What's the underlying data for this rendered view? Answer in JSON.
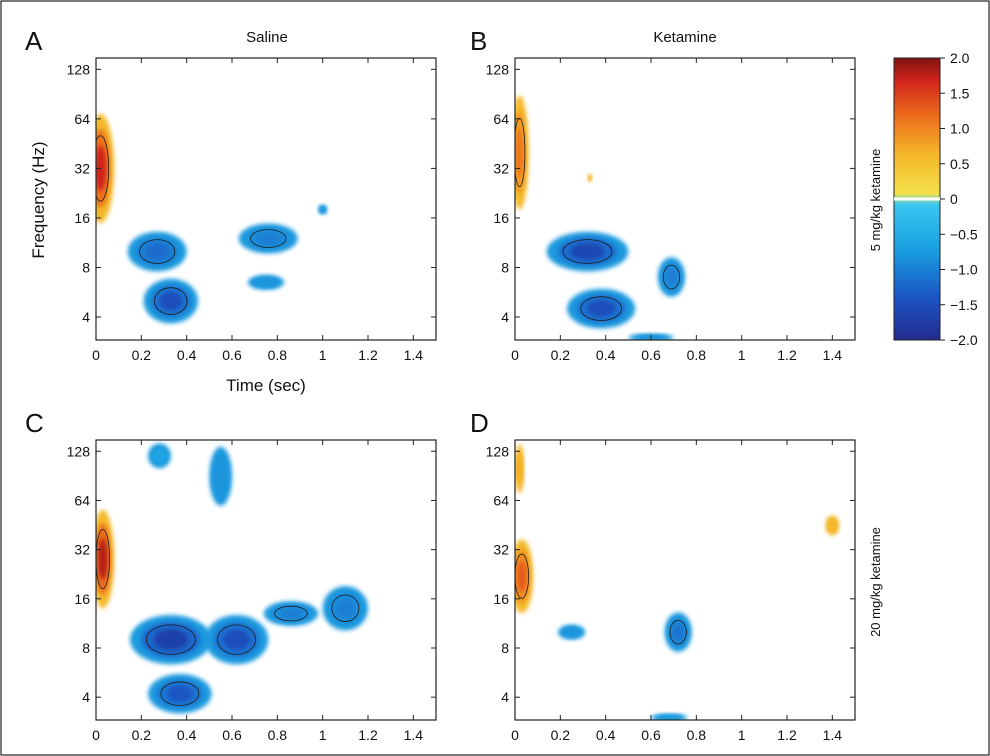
{
  "figure": {
    "colors": {
      "deep_blue": "#2a2f9a",
      "blue": "#1e6fd0",
      "light_blue": "#1fa7e6",
      "yellow": "#f2c12e",
      "orange": "#ee7a1e",
      "red": "#d8221e",
      "dark_red": "#8c1712",
      "border": "#222222"
    }
  },
  "row_labels": [
    "5 mg/kg ketamine",
    "20 mg/kg ketamine"
  ],
  "colorbar": {
    "ticks": [
      "2.0",
      "1.5",
      "1.0",
      "0.5",
      "0",
      "−0.5",
      "−1.0",
      "−1.5",
      "−2.0"
    ],
    "range": [
      -2.0,
      2.0
    ]
  },
  "axes": {
    "x_ticks": [
      "0",
      "0.2",
      "0.4",
      "0.6",
      "0.8",
      "1",
      "1.2",
      "1.4"
    ],
    "y_ticks": [
      "128",
      "64",
      "32",
      "16",
      "8",
      "4"
    ],
    "xlabel": "Time (sec)",
    "ylabel": "Frequency (Hz)"
  },
  "chart_data": [
    {
      "type": "heatmap",
      "panel": "A",
      "title": "Saline",
      "xlabel": "Time (sec)",
      "ylabel": "Frequency (Hz)",
      "xlim": [
        0,
        1.5
      ],
      "y_scale": "log2",
      "ylim": [
        2.9,
        150
      ],
      "color_range": [
        -2.0,
        2.0
      ],
      "blobs": [
        {
          "t": 0.02,
          "f": 32,
          "value": 1.7,
          "t_half": 0.06,
          "f_span": 2.2
        },
        {
          "t": 0.33,
          "f": 5,
          "value": -1.5,
          "t_half": 0.12,
          "f_span": 0.9
        },
        {
          "t": 0.27,
          "f": 10,
          "value": -1.2,
          "t_half": 0.13,
          "f_span": 0.8
        },
        {
          "t": 0.76,
          "f": 12,
          "value": -1.0,
          "t_half": 0.13,
          "f_span": 0.6
        },
        {
          "t": 0.75,
          "f": 6.5,
          "value": -0.8,
          "t_half": 0.08,
          "f_span": 0.3
        },
        {
          "t": 1.0,
          "f": 18,
          "value": -0.7,
          "t_half": 0.02,
          "f_span": 0.2
        }
      ]
    },
    {
      "type": "heatmap",
      "panel": "B",
      "title": "Ketamine",
      "xlabel": "",
      "ylabel": "",
      "xlim": [
        0,
        1.5
      ],
      "y_scale": "log2",
      "ylim": [
        2.9,
        150
      ],
      "color_range": [
        -2.0,
        2.0
      ],
      "blobs": [
        {
          "t": 0.02,
          "f": 40,
          "value": 1.1,
          "t_half": 0.04,
          "f_span": 2.3
        },
        {
          "t": 0.32,
          "f": 10,
          "value": -1.6,
          "t_half": 0.18,
          "f_span": 0.8
        },
        {
          "t": 0.38,
          "f": 4.5,
          "value": -1.5,
          "t_half": 0.15,
          "f_span": 0.8
        },
        {
          "t": 0.69,
          "f": 7,
          "value": -1.0,
          "t_half": 0.06,
          "f_span": 0.8
        },
        {
          "t": 0.6,
          "f": 3.0,
          "value": -0.8,
          "t_half": 0.1,
          "f_span": 0.15
        },
        {
          "t": 0.33,
          "f": 28,
          "value": 0.6,
          "t_half": 0.01,
          "f_span": 0.15
        }
      ]
    },
    {
      "type": "heatmap",
      "panel": "C",
      "title": "",
      "xlabel": "",
      "ylabel": "",
      "xlim": [
        0,
        1.5
      ],
      "y_scale": "log2",
      "ylim": [
        2.9,
        150
      ],
      "color_range": [
        -2.0,
        2.0
      ],
      "blobs": [
        {
          "t": 0.03,
          "f": 28,
          "value": 1.8,
          "t_half": 0.05,
          "f_span": 2.0
        },
        {
          "t": 0.33,
          "f": 9,
          "value": -1.7,
          "t_half": 0.18,
          "f_span": 1.0
        },
        {
          "t": 0.37,
          "f": 4.2,
          "value": -1.4,
          "t_half": 0.14,
          "f_span": 0.8
        },
        {
          "t": 0.62,
          "f": 9,
          "value": -1.5,
          "t_half": 0.14,
          "f_span": 1.0
        },
        {
          "t": 0.86,
          "f": 13,
          "value": -1.0,
          "t_half": 0.12,
          "f_span": 0.5
        },
        {
          "t": 1.1,
          "f": 14,
          "value": -1.0,
          "t_half": 0.1,
          "f_span": 0.9
        },
        {
          "t": 0.55,
          "f": 90,
          "value": -0.8,
          "t_half": 0.05,
          "f_span": 1.2
        },
        {
          "t": 0.28,
          "f": 120,
          "value": -0.6,
          "t_half": 0.05,
          "f_span": 0.5
        }
      ]
    },
    {
      "type": "heatmap",
      "panel": "D",
      "title": "",
      "xlabel": "",
      "ylabel": "",
      "xlim": [
        0,
        1.5
      ],
      "y_scale": "log2",
      "ylim": [
        2.9,
        150
      ],
      "color_range": [
        -2.0,
        2.0
      ],
      "blobs": [
        {
          "t": 0.03,
          "f": 22,
          "value": 1.3,
          "t_half": 0.05,
          "f_span": 1.5
        },
        {
          "t": 0.02,
          "f": 100,
          "value": 0.7,
          "t_half": 0.02,
          "f_span": 1.0
        },
        {
          "t": 0.25,
          "f": 10,
          "value": -0.8,
          "t_half": 0.06,
          "f_span": 0.3
        },
        {
          "t": 0.72,
          "f": 10,
          "value": -1.1,
          "t_half": 0.06,
          "f_span": 0.8
        },
        {
          "t": 0.68,
          "f": 3.0,
          "value": -0.7,
          "t_half": 0.08,
          "f_span": 0.1
        },
        {
          "t": 1.4,
          "f": 45,
          "value": 0.6,
          "t_half": 0.03,
          "f_span": 0.4
        }
      ]
    }
  ]
}
